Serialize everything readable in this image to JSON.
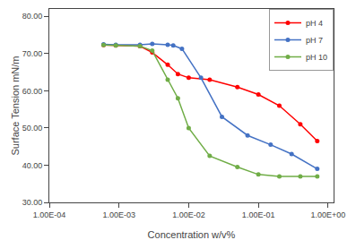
{
  "chart_data": {
    "type": "line",
    "xlabel": "Concentration w/v%",
    "ylabel": "Surface Tension mN/m",
    "log": "x",
    "xlim": [
      0.0001,
      1.2
    ],
    "xticks": [
      {
        "value": 0.0001,
        "label": "1.00E-04"
      },
      {
        "value": 0.001,
        "label": "1.00E-03"
      },
      {
        "value": 0.01,
        "label": "1.00E-02"
      },
      {
        "value": 0.1,
        "label": "1.00E-01"
      },
      {
        "value": 1,
        "label": "1.00E+00"
      }
    ],
    "ylim": [
      30.0,
      82.0
    ],
    "yticks": [
      {
        "value": 30,
        "label": "30.00"
      },
      {
        "value": 40,
        "label": "40.00"
      },
      {
        "value": 50,
        "label": "50.00"
      },
      {
        "value": 60,
        "label": "60.00"
      },
      {
        "value": 70,
        "label": "70.00"
      },
      {
        "value": 80,
        "label": "80.00"
      }
    ],
    "grid": false,
    "legend": "upper right",
    "marker": "circle",
    "line_style": "solid",
    "series": [
      {
        "name": "pH 4",
        "color": "#ff0000",
        "x": [
          0.0006,
          0.0009,
          0.002,
          0.003,
          0.005,
          0.007,
          0.01,
          0.02,
          0.05,
          0.1,
          0.2,
          0.4,
          0.7
        ],
        "values": [
          72.3,
          72.2,
          72.0,
          70.3,
          67.0,
          64.5,
          63.5,
          63.0,
          61.0,
          59.0,
          56.0,
          51.0,
          46.5
        ]
      },
      {
        "name": "pH 7",
        "color": "#4472c4",
        "x": [
          0.0006,
          0.0009,
          0.002,
          0.003,
          0.005,
          0.006,
          0.008,
          0.015,
          0.03,
          0.07,
          0.15,
          0.3,
          0.7
        ],
        "values": [
          72.5,
          72.4,
          72.4,
          72.6,
          72.4,
          72.2,
          71.3,
          63.5,
          53.0,
          48.0,
          45.5,
          43.0,
          39.0
        ]
      },
      {
        "name": "pH 10",
        "color": "#70ad47",
        "x": [
          0.0006,
          0.0009,
          0.002,
          0.003,
          0.005,
          0.007,
          0.01,
          0.02,
          0.05,
          0.1,
          0.2,
          0.4,
          0.7
        ],
        "values": [
          72.3,
          72.2,
          72.0,
          70.8,
          63.0,
          58.0,
          50.0,
          42.5,
          39.5,
          37.5,
          37.0,
          37.0,
          37.0
        ]
      }
    ]
  }
}
